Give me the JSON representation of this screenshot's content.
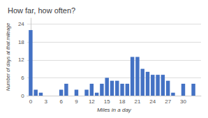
{
  "chart_data": {
    "type": "bar",
    "title": "How far, how often?",
    "xlabel": "Miles in a day",
    "ylabel": "Number of days at that mileage",
    "x": [
      0,
      1,
      2,
      3,
      4,
      5,
      6,
      7,
      8,
      9,
      10,
      11,
      12,
      13,
      14,
      15,
      16,
      17,
      18,
      19,
      20,
      21,
      22,
      23,
      24,
      25,
      26,
      27,
      28,
      29,
      30,
      31,
      32
    ],
    "values": [
      22,
      2,
      1,
      0,
      0,
      0,
      2,
      4,
      0,
      2,
      0,
      2,
      4,
      1,
      4,
      6,
      5,
      5,
      4,
      4,
      13,
      13,
      9,
      8,
      7,
      7,
      7,
      5,
      1,
      0,
      4,
      0,
      4
    ],
    "color": "#4472c4",
    "xlim": [
      -0.7,
      33.5
    ],
    "xticks": [
      0,
      3,
      6,
      9,
      12,
      15,
      18,
      21,
      24,
      27,
      30
    ],
    "ylim": [
      0,
      26
    ],
    "yticks": [
      0,
      6,
      12,
      18,
      24
    ],
    "grid": true
  }
}
